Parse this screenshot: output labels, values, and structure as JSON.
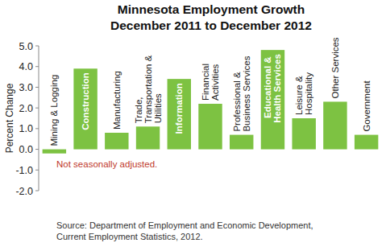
{
  "chart_data": {
    "type": "bar",
    "title": [
      "Minnesota Employment Growth",
      "December 2011 to December 2012"
    ],
    "y_label": "Percent Change",
    "categories": [
      "Mining & Logging",
      "Construction",
      "Manufacturing",
      "Trade, Transportation & Utilities",
      "Information",
      "Financial Activities",
      "Professional & Business Services",
      "Educational & Health Services",
      "Leisure & Hospitality",
      "Other Services",
      "Government"
    ],
    "values": [
      -0.2,
      3.9,
      0.8,
      1.1,
      3.4,
      2.2,
      0.7,
      4.8,
      1.5,
      2.3,
      0.7
    ],
    "color": "#7dc242",
    "ylim": [
      -2,
      5
    ],
    "yticks": [
      {
        "value": -2,
        "label": "-2.0"
      },
      {
        "value": -1,
        "label": "-1.0"
      },
      {
        "value": 0,
        "label": "0.0"
      },
      {
        "value": 1,
        "label": "1.0"
      },
      {
        "value": 2,
        "label": "2.0"
      },
      {
        "value": 3,
        "label": "3.0"
      },
      {
        "value": 4,
        "label": "4.0"
      },
      {
        "value": 5,
        "label": "5.0"
      }
    ],
    "grid": false,
    "annotation": "Not seasonally adjusted.",
    "source": [
      "Source: Department of Employment and Economic Development,",
      "Current Employment Statistics, 2012."
    ]
  }
}
